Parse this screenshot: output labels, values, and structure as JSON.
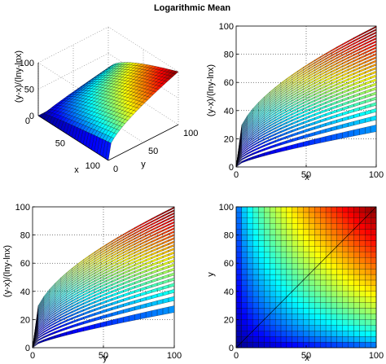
{
  "chart_data": {
    "title": "Logarithmic Mean",
    "function": "(y-x)/(lny-lnx)",
    "domain": {
      "x": [
        0,
        100
      ],
      "y": [
        0,
        100
      ]
    },
    "colormap": "jet",
    "grid": "on",
    "panels": [
      {
        "id": "3d-view",
        "type": "surface",
        "xlabel": "x",
        "ylabel": "y",
        "zlabel": "(y-x)/(lny-lnx)",
        "xlim": [
          0,
          100
        ],
        "ylim": [
          0,
          100
        ],
        "zlim": [
          0,
          100
        ],
        "x_ticks": [
          "0",
          "50",
          "100"
        ],
        "y_ticks": [
          "0",
          "50",
          "100"
        ],
        "z_ticks": [
          "0",
          "50",
          "100"
        ]
      },
      {
        "id": "xz-view",
        "type": "surface",
        "xlabel": "x",
        "ylabel": "(y-x)/(lny-lnx)",
        "xlim": [
          0,
          100
        ],
        "ylim": [
          0,
          100
        ],
        "x_ticks": [
          "0",
          "50",
          "100"
        ],
        "y_ticks": [
          "0",
          "20",
          "40",
          "60",
          "80",
          "100"
        ]
      },
      {
        "id": "yz-view",
        "type": "surface",
        "xlabel": "y",
        "ylabel": "(y-x)/(lny-lnx)",
        "xlim": [
          0,
          100
        ],
        "ylim": [
          0,
          100
        ],
        "x_ticks": [
          "0",
          "50",
          "100"
        ],
        "y_ticks": [
          "0",
          "20",
          "40",
          "60",
          "80",
          "100"
        ]
      },
      {
        "id": "top-view",
        "type": "heatmap",
        "xlabel": "x",
        "ylabel": "y",
        "xlim": [
          0,
          100
        ],
        "ylim": [
          0,
          100
        ],
        "x_ticks": [
          "0",
          "50",
          "100"
        ],
        "y_ticks": [
          "0",
          "20",
          "40",
          "60",
          "80",
          "100"
        ]
      }
    ]
  }
}
